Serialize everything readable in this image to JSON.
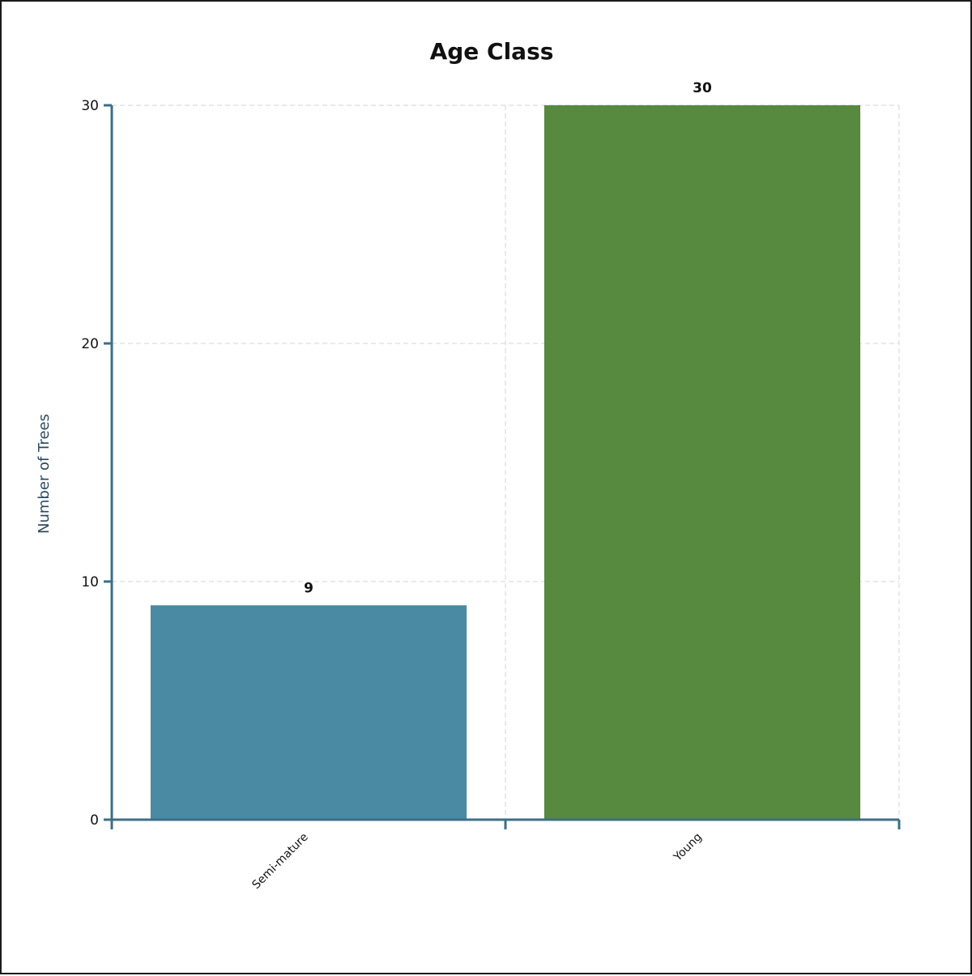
{
  "chart_data": {
    "type": "bar",
    "title": "Age Class",
    "xlabel": "",
    "ylabel": "Number of Trees",
    "categories": [
      "Semi-mature",
      "Young"
    ],
    "values": [
      9,
      30
    ],
    "data_labels": [
      "9",
      "30"
    ],
    "ylim": [
      0,
      30
    ],
    "yticks": [
      0,
      10,
      20,
      30
    ],
    "ytick_labels": [
      "0",
      "10",
      "20",
      "30"
    ],
    "colors": [
      "#4a8ba3",
      "#578a3e"
    ],
    "grid": true,
    "legend": "none"
  }
}
